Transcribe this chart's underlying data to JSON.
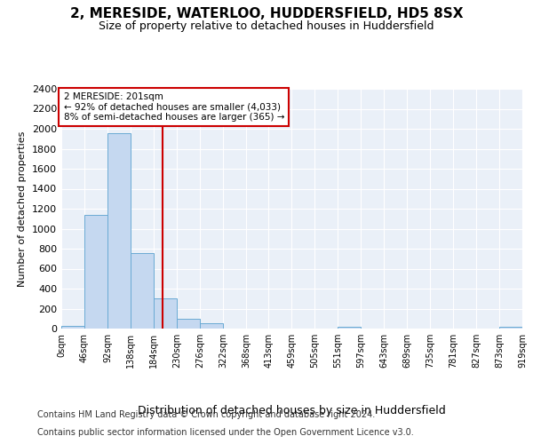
{
  "title": "2, MERESIDE, WATERLOO, HUDDERSFIELD, HD5 8SX",
  "subtitle": "Size of property relative to detached houses in Huddersfield",
  "xlabel": "Distribution of detached houses by size in Huddersfield",
  "ylabel": "Number of detached properties",
  "bar_edges": [
    0,
    46,
    92,
    138,
    184,
    230,
    276,
    322,
    368,
    413,
    459,
    505,
    551,
    597,
    643,
    689,
    735,
    781,
    827,
    873,
    919
  ],
  "bar_heights": [
    30,
    1140,
    1960,
    760,
    300,
    100,
    50,
    0,
    0,
    0,
    0,
    0,
    20,
    0,
    0,
    0,
    0,
    0,
    0,
    20
  ],
  "bar_color": "#c5d8f0",
  "bar_edge_color": "#6aaad4",
  "property_line_x": 201,
  "property_line_color": "#cc0000",
  "annotation_line1": "2 MERESIDE: 201sqm",
  "annotation_line2": "← 92% of detached houses are smaller (4,033)",
  "annotation_line3": "8% of semi-detached houses are larger (365) →",
  "annotation_box_color": "#cc0000",
  "ylim": [
    0,
    2400
  ],
  "yticks": [
    0,
    200,
    400,
    600,
    800,
    1000,
    1200,
    1400,
    1600,
    1800,
    2000,
    2200,
    2400
  ],
  "tick_labels": [
    "0sqm",
    "46sqm",
    "92sqm",
    "138sqm",
    "184sqm",
    "230sqm",
    "276sqm",
    "322sqm",
    "368sqm",
    "413sqm",
    "459sqm",
    "505sqm",
    "551sqm",
    "597sqm",
    "643sqm",
    "689sqm",
    "735sqm",
    "781sqm",
    "827sqm",
    "873sqm",
    "919sqm"
  ],
  "footer1": "Contains HM Land Registry data © Crown copyright and database right 2024.",
  "footer2": "Contains public sector information licensed under the Open Government Licence v3.0.",
  "plot_bg_color": "#eaf0f8"
}
